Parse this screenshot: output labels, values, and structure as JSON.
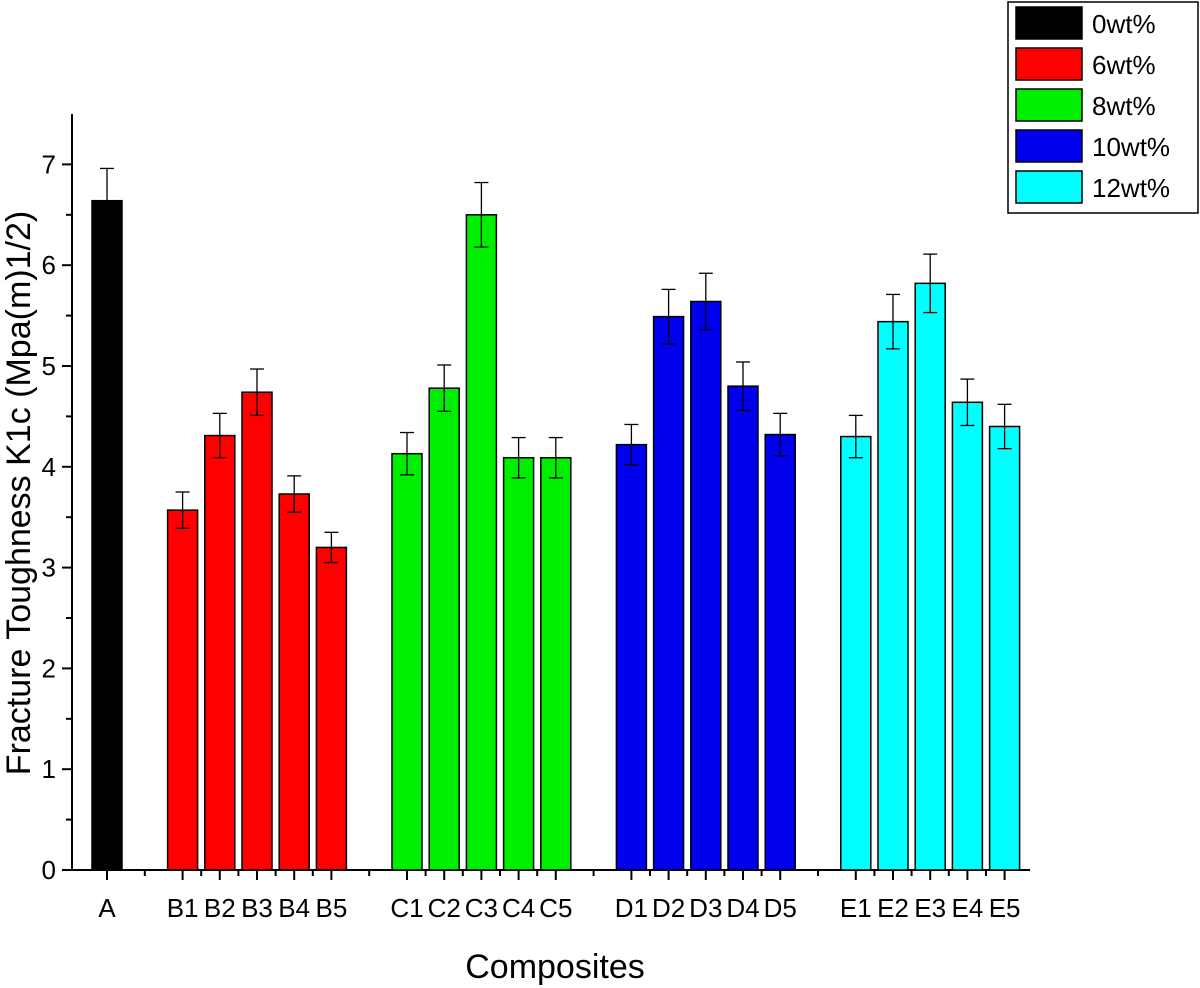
{
  "chart_data": {
    "type": "bar",
    "title": "",
    "xlabel": "Composites",
    "ylabel": "Fracture Toughness K1c (Mpa(m)1/2)",
    "ylim": [
      0,
      7.5
    ],
    "yticks": [
      0,
      1,
      2,
      3,
      4,
      5,
      6,
      7
    ],
    "grid": false,
    "legend_position": "top-right",
    "error_bars": true,
    "series": [
      {
        "name": "0wt%",
        "color": "#000000",
        "categories": [
          "A"
        ],
        "values": [
          6.64
        ],
        "errors": [
          0.32
        ]
      },
      {
        "name": "6wt%",
        "color": "#ff0000",
        "categories": [
          "B1",
          "B2",
          "B3",
          "B4",
          "B5"
        ],
        "values": [
          3.57,
          4.31,
          4.74,
          3.73,
          3.2
        ],
        "errors": [
          0.18,
          0.22,
          0.23,
          0.18,
          0.15
        ]
      },
      {
        "name": "8wt%",
        "color": "#00ee00",
        "categories": [
          "C1",
          "C2",
          "C3",
          "C4",
          "C5"
        ],
        "values": [
          4.13,
          4.78,
          6.5,
          4.09,
          4.09
        ],
        "errors": [
          0.21,
          0.23,
          0.32,
          0.2,
          0.2
        ]
      },
      {
        "name": "10wt%",
        "color": "#0000ee",
        "categories": [
          "D1",
          "D2",
          "D3",
          "D4",
          "D5"
        ],
        "values": [
          4.22,
          5.49,
          5.64,
          4.8,
          4.32
        ],
        "errors": [
          0.2,
          0.27,
          0.28,
          0.24,
          0.21
        ]
      },
      {
        "name": "12wt%",
        "color": "#00ffff",
        "categories": [
          "E1",
          "E2",
          "E3",
          "E4",
          "E5"
        ],
        "values": [
          4.3,
          5.44,
          5.82,
          4.64,
          4.4
        ],
        "errors": [
          0.21,
          0.27,
          0.29,
          0.23,
          0.22
        ]
      }
    ]
  }
}
